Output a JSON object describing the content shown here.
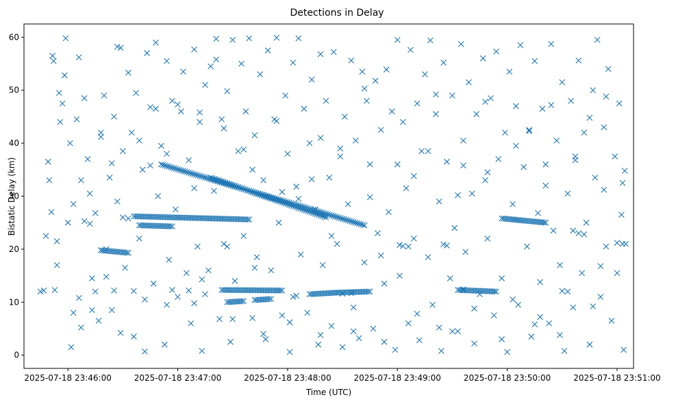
{
  "chart_data": {
    "type": "scatter",
    "title": "Detections in Delay",
    "xlabel": "Time (UTC)",
    "ylabel": "Bistatic Delay (km)",
    "x_unit": "minutes after 2025-07-18 23:46:00",
    "xlim": [
      -0.4,
      5.15
    ],
    "ylim": [
      -2.5,
      62.5
    ],
    "x_ticks": [
      {
        "value": 0,
        "label": "2025-07-18 23:46:00"
      },
      {
        "value": 1,
        "label": "2025-07-18 23:47:00"
      },
      {
        "value": 2,
        "label": "2025-07-18 23:48:00"
      },
      {
        "value": 3,
        "label": "2025-07-18 23:49:00"
      },
      {
        "value": 4,
        "label": "2025-07-18 23:50:00"
      },
      {
        "value": 5,
        "label": "2025-07-18 23:51:00"
      }
    ],
    "y_ticks": [
      {
        "value": 0,
        "label": "0"
      },
      {
        "value": 10,
        "label": "10"
      },
      {
        "value": 20,
        "label": "20"
      },
      {
        "value": 30,
        "label": "30"
      },
      {
        "value": 40,
        "label": "40"
      },
      {
        "value": 50,
        "label": "50"
      },
      {
        "value": 60,
        "label": "60"
      }
    ],
    "marker": "x",
    "color": "#1f77b4",
    "tracks": [
      {
        "name": "descending-track-A",
        "x_start": 0.85,
        "y_start": 36.0,
        "x_end": 2.7,
        "y_end": 24.5
      },
      {
        "name": "descending-track-B",
        "x_start": 1.3,
        "y_start": 33.5,
        "x_end": 2.35,
        "y_end": 26.0
      },
      {
        "name": "band-26-mid",
        "x_start": 0.6,
        "y_start": 26.2,
        "x_end": 1.65,
        "y_end": 25.6
      },
      {
        "name": "band-26-right",
        "x_start": 3.95,
        "y_start": 25.8,
        "x_end": 4.35,
        "y_end": 25.0
      },
      {
        "name": "band-24-left",
        "x_start": 0.65,
        "y_start": 24.5,
        "x_end": 0.95,
        "y_end": 24.3
      },
      {
        "name": "band-19-left",
        "x_start": 0.3,
        "y_start": 19.8,
        "x_end": 0.55,
        "y_end": 19.3
      },
      {
        "name": "band-12-mid",
        "x_start": 1.4,
        "y_start": 12.3,
        "x_end": 1.95,
        "y_end": 12.2
      },
      {
        "name": "band-12-right",
        "x_start": 2.45,
        "y_start": 11.8,
        "x_end": 2.75,
        "y_end": 12.0
      },
      {
        "name": "band-12-far",
        "x_start": 3.55,
        "y_start": 12.3,
        "x_end": 3.9,
        "y_end": 12.0
      },
      {
        "name": "band-11-mid",
        "x_start": 2.2,
        "y_start": 11.5,
        "x_end": 2.45,
        "y_end": 11.8
      },
      {
        "name": "band-10-left",
        "x_start": 1.45,
        "y_start": 10.0,
        "x_end": 1.6,
        "y_end": 10.2
      },
      {
        "name": "band-10-mid",
        "x_start": 1.7,
        "y_start": 10.4,
        "x_end": 1.85,
        "y_end": 10.6
      }
    ],
    "points": [
      [
        -0.25,
        12.0
      ],
      [
        -0.2,
        22.5
      ],
      [
        -0.15,
        27.0
      ],
      [
        -0.18,
        36.5
      ],
      [
        -0.17,
        33.0
      ],
      [
        -0.14,
        56.5
      ],
      [
        -0.13,
        55.5
      ],
      [
        -0.1,
        17.0
      ],
      [
        -0.08,
        49.5
      ],
      [
        -0.07,
        44.0
      ],
      [
        -0.05,
        47.5
      ],
      [
        -0.03,
        52.8
      ],
      [
        -0.02,
        59.8
      ],
      [
        0.0,
        25.0
      ],
      [
        0.02,
        40.0
      ],
      [
        0.03,
        1.5
      ],
      [
        0.05,
        8.0
      ],
      [
        0.08,
        44.5
      ],
      [
        0.1,
        56.2
      ],
      [
        0.12,
        5.2
      ],
      [
        0.15,
        48.5
      ],
      [
        0.18,
        37.0
      ],
      [
        0.2,
        30.5
      ],
      [
        0.22,
        14.5
      ],
      [
        0.25,
        26.8
      ],
      [
        0.28,
        6.5
      ],
      [
        0.3,
        41.2
      ],
      [
        0.33,
        49.0
      ],
      [
        0.35,
        20.0
      ],
      [
        0.38,
        33.5
      ],
      [
        0.4,
        8.5
      ],
      [
        0.42,
        45.0
      ],
      [
        0.45,
        29.0
      ],
      [
        0.48,
        58.0
      ],
      [
        0.5,
        38.5
      ],
      [
        0.52,
        16.5
      ],
      [
        0.55,
        53.3
      ],
      [
        0.58,
        42.0
      ],
      [
        0.6,
        3.5
      ],
      [
        0.62,
        49.5
      ],
      [
        0.65,
        22.0
      ],
      [
        0.68,
        35.0
      ],
      [
        0.7,
        0.7
      ],
      [
        0.72,
        57.0
      ],
      [
        0.75,
        46.8
      ],
      [
        0.78,
        13.5
      ],
      [
        0.8,
        59.0
      ],
      [
        0.82,
        30.0
      ],
      [
        0.85,
        39.5
      ],
      [
        0.88,
        2.0
      ],
      [
        0.9,
        55.5
      ],
      [
        0.92,
        18.0
      ],
      [
        0.95,
        48.0
      ],
      [
        0.98,
        27.5
      ],
      [
        1.0,
        11.0
      ],
      [
        1.03,
        46.0
      ],
      [
        1.05,
        53.5
      ],
      [
        1.08,
        15.5
      ],
      [
        1.1,
        36.8
      ],
      [
        1.12,
        6.0
      ],
      [
        1.15,
        57.7
      ],
      [
        1.18,
        20.5
      ],
      [
        1.2,
        44.0
      ],
      [
        1.22,
        0.8
      ],
      [
        1.25,
        51.0
      ],
      [
        1.28,
        16.0
      ],
      [
        1.3,
        54.5
      ],
      [
        1.33,
        31.0
      ],
      [
        1.35,
        59.7
      ],
      [
        1.38,
        6.8
      ],
      [
        1.4,
        44.5
      ],
      [
        1.42,
        21.0
      ],
      [
        1.45,
        49.8
      ],
      [
        1.48,
        2.5
      ],
      [
        1.5,
        59.5
      ],
      [
        1.52,
        14.0
      ],
      [
        1.55,
        38.5
      ],
      [
        1.58,
        55.0
      ],
      [
        1.6,
        22.5
      ],
      [
        1.62,
        46.0
      ],
      [
        1.65,
        59.8
      ],
      [
        1.68,
        7.0
      ],
      [
        1.7,
        41.5
      ],
      [
        1.72,
        18.5
      ],
      [
        1.75,
        53.0
      ],
      [
        1.78,
        33.0
      ],
      [
        1.8,
        3.0
      ],
      [
        1.82,
        57.5
      ],
      [
        1.85,
        16.0
      ],
      [
        1.88,
        44.5
      ],
      [
        1.9,
        59.9
      ],
      [
        1.92,
        25.0
      ],
      [
        1.95,
        7.5
      ],
      [
        1.98,
        49.0
      ],
      [
        2.0,
        38.0
      ],
      [
        2.02,
        0.6
      ],
      [
        2.05,
        55.2
      ],
      [
        2.08,
        31.8
      ],
      [
        2.1,
        59.8
      ],
      [
        2.12,
        19.0
      ],
      [
        2.15,
        46.5
      ],
      [
        2.18,
        8.0
      ],
      [
        2.2,
        40.0
      ],
      [
        2.22,
        52.0
      ],
      [
        2.25,
        27.5
      ],
      [
        2.28,
        2.0
      ],
      [
        2.3,
        56.8
      ],
      [
        2.32,
        17.0
      ],
      [
        2.35,
        48.0
      ],
      [
        2.38,
        33.5
      ],
      [
        2.4,
        5.5
      ],
      [
        2.42,
        57.2
      ],
      [
        2.45,
        21.0
      ],
      [
        2.48,
        37.5
      ],
      [
        2.5,
        1.5
      ],
      [
        2.52,
        45.0
      ],
      [
        2.55,
        28.5
      ],
      [
        2.58,
        55.6
      ],
      [
        2.6,
        9.0
      ],
      [
        2.62,
        40.5
      ],
      [
        2.65,
        3.2
      ],
      [
        2.68,
        53.5
      ],
      [
        2.7,
        17.5
      ],
      [
        2.72,
        48.0
      ],
      [
        2.75,
        36.0
      ],
      [
        2.78,
        5.0
      ],
      [
        2.8,
        51.8
      ],
      [
        2.82,
        23.0
      ],
      [
        2.85,
        42.5
      ],
      [
        2.88,
        13.5
      ],
      [
        2.9,
        53.9
      ],
      [
        2.92,
        27.0
      ],
      [
        2.95,
        46.0
      ],
      [
        2.98,
        1.0
      ],
      [
        3.0,
        59.5
      ],
      [
        3.02,
        15.0
      ],
      [
        3.05,
        44.0
      ],
      [
        3.08,
        31.5
      ],
      [
        3.1,
        6.0
      ],
      [
        3.12,
        57.6
      ],
      [
        3.15,
        22.0
      ],
      [
        3.18,
        47.5
      ],
      [
        3.2,
        2.8
      ],
      [
        3.22,
        38.5
      ],
      [
        3.25,
        53.0
      ],
      [
        3.28,
        18.5
      ],
      [
        3.3,
        59.4
      ],
      [
        3.32,
        9.5
      ],
      [
        3.35,
        45.5
      ],
      [
        3.38,
        29.0
      ],
      [
        3.4,
        0.8
      ],
      [
        3.42,
        55.2
      ],
      [
        3.45,
        36.5
      ],
      [
        3.48,
        14.5
      ],
      [
        3.5,
        49.0
      ],
      [
        3.52,
        24.0
      ],
      [
        3.55,
        4.5
      ],
      [
        3.58,
        58.7
      ],
      [
        3.6,
        40.5
      ],
      [
        3.62,
        19.5
      ],
      [
        3.65,
        51.5
      ],
      [
        3.68,
        30.5
      ],
      [
        3.7,
        2.2
      ],
      [
        3.72,
        45.5
      ],
      [
        3.75,
        11.5
      ],
      [
        3.78,
        56.0
      ],
      [
        3.8,
        33.0
      ],
      [
        3.82,
        22.0
      ],
      [
        3.85,
        48.5
      ],
      [
        3.88,
        7.5
      ],
      [
        3.9,
        57.3
      ],
      [
        3.92,
        37.0
      ],
      [
        3.95,
        14.5
      ],
      [
        3.98,
        42.0
      ],
      [
        4.0,
        0.6
      ],
      [
        4.02,
        53.5
      ],
      [
        4.05,
        28.5
      ],
      [
        4.08,
        47.0
      ],
      [
        4.1,
        9.5
      ],
      [
        4.12,
        58.5
      ],
      [
        4.15,
        35.5
      ],
      [
        4.18,
        20.5
      ],
      [
        4.2,
        42.5
      ],
      [
        4.22,
        3.5
      ],
      [
        4.25,
        55.5
      ],
      [
        4.28,
        26.8
      ],
      [
        4.3,
        13.8
      ],
      [
        4.32,
        46.5
      ],
      [
        4.35,
        36.0
      ],
      [
        4.38,
        6.0
      ],
      [
        4.4,
        58.7
      ],
      [
        4.42,
        23.5
      ],
      [
        4.45,
        40.5
      ],
      [
        4.48,
        17.0
      ],
      [
        4.5,
        51.5
      ],
      [
        4.52,
        0.8
      ],
      [
        4.55,
        30.5
      ],
      [
        4.58,
        48.0
      ],
      [
        4.6,
        9.0
      ],
      [
        4.62,
        37.5
      ],
      [
        4.65,
        55.6
      ],
      [
        4.68,
        15.5
      ],
      [
        4.7,
        42.0
      ],
      [
        4.72,
        25.0
      ],
      [
        4.75,
        2.0
      ],
      [
        4.78,
        50.0
      ],
      [
        4.8,
        33.5
      ],
      [
        4.82,
        59.5
      ],
      [
        4.85,
        11.0
      ],
      [
        4.88,
        43.0
      ],
      [
        4.9,
        20.5
      ],
      [
        4.92,
        54.0
      ],
      [
        4.95,
        6.5
      ],
      [
        4.98,
        37.5
      ],
      [
        5.0,
        15.5
      ],
      [
        5.02,
        47.5
      ],
      [
        5.04,
        26.5
      ],
      [
        5.06,
        1.0
      ],
      [
        5.07,
        34.8
      ],
      [
        5.08,
        21.0
      ],
      [
        -0.22,
        12.2
      ],
      [
        -0.12,
        12.3
      ],
      [
        0.25,
        12.0
      ],
      [
        0.42,
        12.2
      ],
      [
        0.6,
        12.1
      ],
      [
        0.95,
        12.3
      ],
      [
        1.1,
        12.2
      ],
      [
        1.15,
        9.8
      ],
      [
        1.25,
        11.5
      ],
      [
        2.05,
        11.0
      ],
      [
        2.08,
        11.2
      ],
      [
        2.5,
        11.6
      ],
      [
        2.58,
        11.7
      ],
      [
        3.6,
        12.4
      ],
      [
        4.5,
        12.1
      ],
      [
        4.55,
        12.0
      ],
      [
        0.15,
        25.3
      ],
      [
        0.2,
        24.8
      ],
      [
        0.5,
        26.0
      ],
      [
        0.55,
        25.8
      ],
      [
        3.02,
        20.8
      ],
      [
        3.05,
        20.6
      ],
      [
        3.1,
        20.5
      ],
      [
        3.42,
        20.9
      ],
      [
        3.45,
        20.7
      ],
      [
        4.6,
        23.5
      ],
      [
        4.65,
        23.0
      ],
      [
        4.7,
        22.8
      ],
      [
        5.0,
        21.2
      ],
      [
        5.05,
        21.0
      ],
      [
        0.3,
        42.0
      ],
      [
        0.45,
        58.2
      ],
      [
        0.8,
        46.5
      ],
      [
        1.0,
        47.3
      ],
      [
        1.2,
        45.8
      ],
      [
        1.35,
        55.8
      ],
      [
        1.6,
        38.8
      ],
      [
        1.9,
        44.2
      ],
      [
        2.3,
        41.0
      ],
      [
        2.7,
        50.3
      ],
      [
        3.35,
        49.2
      ],
      [
        3.6,
        35.8
      ],
      [
        3.8,
        47.8
      ],
      [
        4.2,
        42.3
      ],
      [
        4.4,
        47.2
      ],
      [
        4.75,
        44.8
      ],
      [
        4.9,
        48.8
      ],
      [
        0.05,
        28.5
      ],
      [
        0.35,
        14.8
      ],
      [
        0.75,
        35.8
      ],
      [
        1.45,
        20.5
      ],
      [
        1.7,
        16.5
      ],
      [
        2.1,
        29.5
      ],
      [
        2.4,
        22.5
      ],
      [
        2.85,
        18.8
      ],
      [
        3.15,
        33.8
      ],
      [
        3.5,
        4.5
      ],
      [
        4.05,
        10.5
      ],
      [
        4.3,
        7.2
      ],
      [
        4.85,
        16.8
      ],
      [
        -0.1,
        21.5
      ],
      [
        0.1,
        10.8
      ],
      [
        0.22,
        8.5
      ],
      [
        0.48,
        4.2
      ],
      [
        0.7,
        10.5
      ],
      [
        0.9,
        9.5
      ],
      [
        1.22,
        14.3
      ],
      [
        1.5,
        6.8
      ],
      [
        1.78,
        4.0
      ],
      [
        2.02,
        6.2
      ],
      [
        2.3,
        3.8
      ],
      [
        2.6,
        4.5
      ],
      [
        2.88,
        2.5
      ],
      [
        3.18,
        7.8
      ],
      [
        3.38,
        5.2
      ],
      [
        3.7,
        8.8
      ],
      [
        3.95,
        3.0
      ],
      [
        4.25,
        5.8
      ],
      [
        4.48,
        3.8
      ],
      [
        4.78,
        9.2
      ],
      [
        0.12,
        33.0
      ],
      [
        0.4,
        36.2
      ],
      [
        0.65,
        40.5
      ],
      [
        0.9,
        38.0
      ],
      [
        1.15,
        31.5
      ],
      [
        1.42,
        42.8
      ],
      [
        1.68,
        35.0
      ],
      [
        1.95,
        30.8
      ],
      [
        2.22,
        33.2
      ],
      [
        2.48,
        39.0
      ],
      [
        2.75,
        29.8
      ],
      [
        3.0,
        36.0
      ],
      [
        3.28,
        38.5
      ],
      [
        3.55,
        30.2
      ],
      [
        3.82,
        34.5
      ],
      [
        4.08,
        39.5
      ],
      [
        4.35,
        32.0
      ],
      [
        4.62,
        36.8
      ],
      [
        4.88,
        31.2
      ],
      [
        5.05,
        32.5
      ]
    ]
  }
}
